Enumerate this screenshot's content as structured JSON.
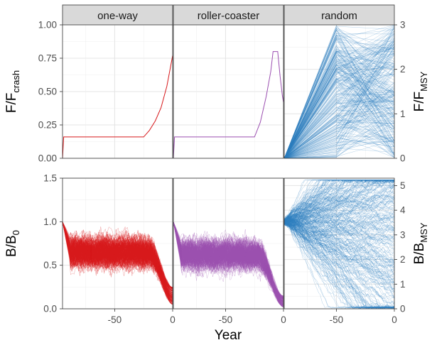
{
  "chart_data": {
    "type": "line",
    "xlabel": "Year",
    "strips": [
      "one-way",
      "roller-coaster",
      "random"
    ],
    "x_ticks": [
      -50,
      0
    ],
    "xlim": [
      -95,
      0
    ],
    "colors": {
      "one-way": "#d7191c",
      "roller-coaster": "#9b4fb0",
      "random": "#2e7dbf"
    },
    "rows": [
      {
        "ylabel_left": {
          "main": "F/F",
          "sub": "crash"
        },
        "ylabel_right": {
          "main": "F/F",
          "sub": "MSY"
        },
        "ylim_left": [
          0,
          1.0
        ],
        "yticks_left": [
          "0.00",
          "0.25",
          "0.50",
          "0.75",
          "1.00"
        ],
        "ytick_values_left": [
          0,
          0.25,
          0.5,
          0.75,
          1.0
        ],
        "ylim_right": [
          0,
          3
        ],
        "yticks_right": [
          "0",
          "1",
          "2",
          "3"
        ],
        "series": {
          "one-way": {
            "description": "flat then exponential rise",
            "points": [
              [
                -95,
                0
              ],
              [
                -94,
                0.16
              ],
              [
                -25,
                0.16
              ],
              [
                -20,
                0.21
              ],
              [
                -15,
                0.28
              ],
              [
                -10,
                0.38
              ],
              [
                -5,
                0.54
              ],
              [
                0,
                0.77
              ]
            ]
          },
          "roller-coaster": {
            "points": [
              [
                -95,
                0
              ],
              [
                -94,
                0.16
              ],
              [
                -25,
                0.16
              ],
              [
                -20,
                0.27
              ],
              [
                -15,
                0.46
              ],
              [
                -11,
                0.65
              ],
              [
                -9,
                0.8
              ],
              [
                -5,
                0.8
              ],
              [
                -3,
                0.62
              ],
              [
                -1,
                0.47
              ],
              [
                0,
                0.42
              ]
            ]
          },
          "random": {
            "description": "many runs: linear rise from 0 at year -95 to random F/FMSY at year -50, then random walk to year 0",
            "n_runs": 300,
            "value_range": [
              0,
              3
            ]
          }
        }
      },
      {
        "ylabel_left": {
          "main": "B/B",
          "sub": "0"
        },
        "ylabel_right": {
          "main": "B/B",
          "sub": "MSY"
        },
        "ylim_left": [
          0,
          1.5
        ],
        "yticks_left": [
          "0.0",
          "0.5",
          "1.0",
          "1.5"
        ],
        "ytick_values_left": [
          0,
          0.5,
          1.0,
          1.5
        ],
        "ylim_right": [
          0,
          5.3
        ],
        "yticks_right": [
          "0",
          "1",
          "2",
          "3",
          "4",
          "5"
        ],
        "series": {
          "one-way": {
            "n_runs": 250,
            "start": 1.0,
            "plateau_mean": 0.65,
            "plateau_spread": [
              0.35,
              1.35
            ],
            "end_range": [
              0.05,
              0.25
            ]
          },
          "roller-coaster": {
            "n_runs": 250,
            "start": 1.0,
            "plateau_mean": 0.62,
            "plateau_spread": [
              0.3,
              1.25
            ],
            "end_range": [
              0.02,
              0.15
            ]
          },
          "random": {
            "n_runs": 300,
            "start": 1.0,
            "value_range_right": [
              0,
              5.3
            ]
          }
        }
      }
    ]
  }
}
